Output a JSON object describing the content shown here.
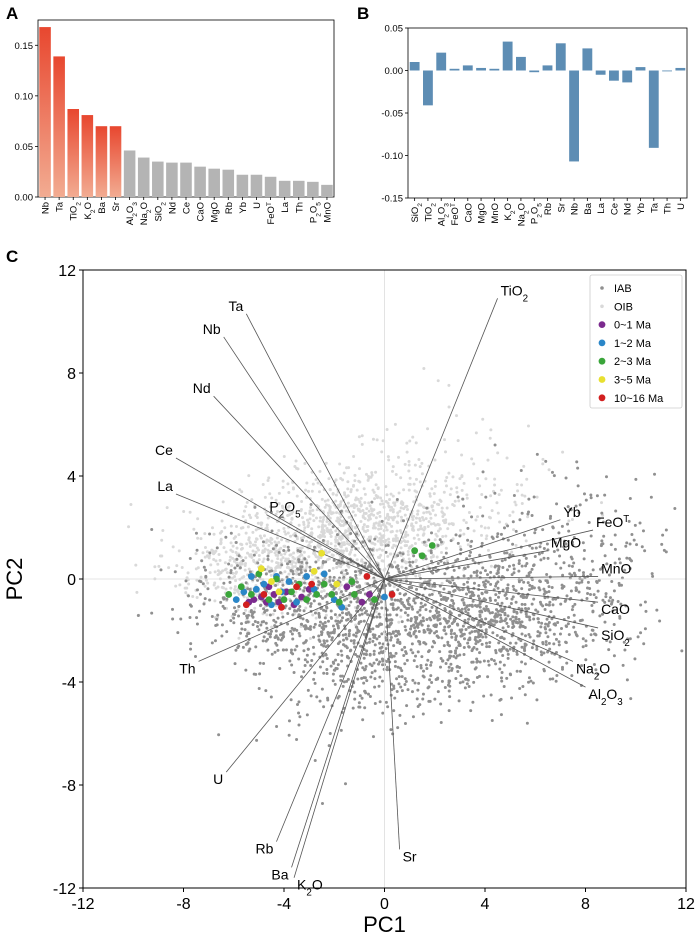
{
  "chart_data": [
    {
      "panel": "A",
      "type": "bar",
      "categories": [
        "Nb",
        "Ta",
        "TiO2",
        "K2O",
        "Ba",
        "Sr",
        "Al2O3",
        "Na2O",
        "SiO2",
        "Nd",
        "Ce",
        "CaO",
        "MgO",
        "Rb",
        "Yb",
        "U",
        "FeOT",
        "La",
        "Th",
        "P2O5",
        "MnO"
      ],
      "tick_labels": [
        [
          "Nb"
        ],
        [
          "Ta"
        ],
        [
          "TiO",
          "2"
        ],
        [
          "K",
          "2",
          "O"
        ],
        [
          "Ba"
        ],
        [
          "Sr"
        ],
        [
          "Al",
          "2",
          "O",
          "3"
        ],
        [
          "Na",
          "2",
          "O"
        ],
        [
          "SiO",
          "2"
        ],
        [
          "Nd"
        ],
        [
          "Ce"
        ],
        [
          "CaO"
        ],
        [
          "MgO"
        ],
        [
          "Rb"
        ],
        [
          "Yb"
        ],
        [
          "U"
        ],
        [
          "FeO",
          "T"
        ],
        [
          "La"
        ],
        [
          "Th"
        ],
        [
          "P",
          "2",
          "O",
          "5"
        ],
        [
          "MnO"
        ]
      ],
      "values": [
        0.168,
        0.139,
        0.087,
        0.081,
        0.07,
        0.07,
        0.046,
        0.039,
        0.035,
        0.034,
        0.034,
        0.03,
        0.028,
        0.027,
        0.022,
        0.022,
        0.02,
        0.016,
        0.016,
        0.015,
        0.012
      ],
      "highlight_count": 6,
      "ylim": [
        0,
        0.175
      ],
      "yticks": [
        "0.00",
        "0.05",
        "0.10",
        "0.15"
      ],
      "ytick_values": [
        0,
        0.05,
        0.1,
        0.15
      ],
      "colors": {
        "highlight_top": "#e8472f",
        "highlight_bottom": "#f2ac92",
        "other": "#b4b4b4"
      }
    },
    {
      "panel": "B",
      "type": "bar",
      "categories": [
        "SiO2",
        "TiO2",
        "Al2O3",
        "FeOT",
        "CaO",
        "MgO",
        "MnO",
        "K2O",
        "Na2O",
        "P2O5",
        "Rb",
        "Sr",
        "Nb",
        "Ba",
        "La",
        "Ce",
        "Nd",
        "Yb",
        "Ta",
        "Th",
        "U"
      ],
      "tick_labels": [
        [
          "SiO",
          "2"
        ],
        [
          "TiO",
          "2"
        ],
        [
          "Al",
          "2",
          "O",
          "3"
        ],
        [
          "FeO",
          "T"
        ],
        [
          "CaO"
        ],
        [
          "MgO"
        ],
        [
          "MnO"
        ],
        [
          "K",
          "2",
          "O"
        ],
        [
          "Na",
          "2",
          "O"
        ],
        [
          "P",
          "2",
          "O",
          "5"
        ],
        [
          "Rb"
        ],
        [
          "Sr"
        ],
        [
          "Nb"
        ],
        [
          "Ba"
        ],
        [
          "La"
        ],
        [
          "Ce"
        ],
        [
          "Nd"
        ],
        [
          "Yb"
        ],
        [
          "Ta"
        ],
        [
          "Th"
        ],
        [
          "U"
        ]
      ],
      "values": [
        0.01,
        -0.041,
        0.021,
        0.002,
        0.006,
        0.003,
        0.002,
        0.034,
        0.016,
        -0.002,
        0.006,
        0.032,
        -0.107,
        0.026,
        -0.005,
        -0.012,
        -0.014,
        0.004,
        -0.091,
        -0.001,
        0.003
      ],
      "ylim": [
        -0.15,
        0.05
      ],
      "yticks": [
        "-0.15",
        "-0.10",
        "-0.05",
        "0.00",
        "0.05"
      ],
      "ytick_values": [
        -0.15,
        -0.1,
        -0.05,
        0.0,
        0.05
      ],
      "colors": {
        "bar": "#5d8db4"
      }
    },
    {
      "panel": "C",
      "type": "scatter",
      "xlabel": "PC1",
      "ylabel": "PC2",
      "xlim": [
        -12,
        12
      ],
      "ylim": [
        -12,
        12
      ],
      "xticks": [
        "-12",
        "-8",
        "-4",
        "0",
        "4",
        "8",
        "12"
      ],
      "yticks": [
        "-12",
        "-8",
        "-4",
        "0",
        "4",
        "8",
        "12"
      ],
      "tick_values": [
        -12,
        -8,
        -4,
        0,
        4,
        8,
        12
      ],
      "legend": {
        "position": "top-right",
        "entries": [
          "IAB",
          "OIB",
          "0~1 Ma",
          "1~2 Ma",
          "2~3 Ma",
          "3~5 Ma",
          "10~16 Ma"
        ]
      },
      "colors": {
        "IAB": "#909090",
        "OIB": "#d9d9d9",
        "0~1 Ma": "#7b2a8e",
        "1~2 Ma": "#2a86c8",
        "2~3 Ma": "#3aa53a",
        "3~5 Ma": "#e8e030",
        "10~16 Ma": "#d21f1f"
      },
      "cloud_shapes": {
        "IAB": [
          {
            "cx": 4,
            "cy": -1.5,
            "sx": 2.6,
            "sy": 1.3,
            "n": 1000
          },
          {
            "cx": -1,
            "cy": -2,
            "sx": 2.0,
            "sy": 1.8,
            "n": 650
          },
          {
            "cx": -4,
            "cy": -1.0,
            "sx": 2.2,
            "sy": 1.3,
            "n": 380
          },
          {
            "cx": 7,
            "cy": 1.0,
            "sx": 2.2,
            "sy": 1.6,
            "n": 220
          }
        ],
        "OIB": [
          {
            "cx": -1,
            "cy": 2.0,
            "sx": 2.2,
            "sy": 1.1,
            "n": 820
          },
          {
            "cx": -4.5,
            "cy": 0.6,
            "sx": 2.0,
            "sy": 1.0,
            "n": 520
          },
          {
            "cx": 2,
            "cy": 3.5,
            "sx": 2.5,
            "sy": 1.4,
            "n": 160
          }
        ]
      },
      "series": [
        {
          "name": "0~1 Ma",
          "points": [
            [
              -5.4,
              -0.9
            ],
            [
              -5.2,
              -0.8
            ],
            [
              -4.9,
              -0.7
            ],
            [
              -4.7,
              -0.9
            ],
            [
              -4.4,
              -0.6
            ],
            [
              -4.2,
              -0.9
            ],
            [
              -3.9,
              -0.5
            ],
            [
              -3.6,
              -1.0
            ],
            [
              -3.3,
              -0.7
            ],
            [
              -0.9,
              -0.9
            ],
            [
              -0.6,
              -0.6
            ],
            [
              -1.5,
              -0.3
            ],
            [
              -4.6,
              -0.3
            ],
            [
              -3.0,
              -0.4
            ]
          ]
        },
        {
          "name": "1~2 Ma",
          "points": [
            [
              -5.9,
              -0.8
            ],
            [
              -5.6,
              -0.5
            ],
            [
              -5.1,
              -0.4
            ],
            [
              -4.8,
              -0.2
            ],
            [
              -4.5,
              -1.0
            ],
            [
              -4.1,
              -0.5
            ],
            [
              -3.8,
              -0.1
            ],
            [
              -3.5,
              -0.9
            ],
            [
              -3.1,
              0.1
            ],
            [
              -2.8,
              -0.4
            ],
            [
              -2.4,
              0.2
            ],
            [
              -2.0,
              -0.8
            ],
            [
              -1.7,
              -1.1
            ],
            [
              0.0,
              -0.7
            ],
            [
              -5.3,
              0.1
            ],
            [
              -4.3,
              0.1
            ]
          ]
        },
        {
          "name": "2~3 Ma",
          "points": [
            [
              -6.2,
              -0.6
            ],
            [
              -5.7,
              -0.3
            ],
            [
              -5.3,
              -0.6
            ],
            [
              -5.0,
              0.2
            ],
            [
              -4.6,
              -0.8
            ],
            [
              -4.3,
              0.0
            ],
            [
              -4.0,
              -0.8
            ],
            [
              -3.7,
              -0.5
            ],
            [
              -3.4,
              -0.2
            ],
            [
              -3.1,
              -0.8
            ],
            [
              -2.7,
              -0.6
            ],
            [
              -2.4,
              -0.2
            ],
            [
              -2.1,
              -0.6
            ],
            [
              -1.8,
              -0.9
            ],
            [
              -1.2,
              -0.6
            ],
            [
              -0.4,
              -0.8
            ],
            [
              1.2,
              1.1
            ],
            [
              1.5,
              0.9
            ],
            [
              1.9,
              1.3
            ],
            [
              -1.3,
              -0.1
            ]
          ]
        },
        {
          "name": "3~5 Ma",
          "points": [
            [
              -4.9,
              0.4
            ],
            [
              -4.5,
              -0.1
            ],
            [
              -4.2,
              -0.5
            ],
            [
              -2.5,
              1.0
            ],
            [
              -2.8,
              0.3
            ],
            [
              -1.9,
              -0.2
            ]
          ]
        },
        {
          "name": "10~16 Ma",
          "points": [
            [
              -5.5,
              -1.0
            ],
            [
              -4.8,
              -0.6
            ],
            [
              -4.1,
              -1.1
            ],
            [
              -3.5,
              -0.3
            ],
            [
              -0.7,
              0.1
            ],
            [
              0.3,
              -0.6
            ],
            [
              -2.9,
              -0.2
            ]
          ]
        }
      ],
      "loadings": [
        {
          "name": "TiO2",
          "label": [
            "TiO",
            "2"
          ],
          "x": 4.5,
          "y": 10.9,
          "anchor": "start"
        },
        {
          "name": "Ta",
          "label": [
            "Ta"
          ],
          "x": -5.5,
          "y": 10.3,
          "anchor": "end"
        },
        {
          "name": "Nb",
          "label": [
            "Nb"
          ],
          "x": -6.4,
          "y": 9.4,
          "anchor": "end"
        },
        {
          "name": "Nd",
          "label": [
            "Nd"
          ],
          "x": -6.8,
          "y": 7.1,
          "anchor": "end"
        },
        {
          "name": "Ce",
          "label": [
            "Ce"
          ],
          "x": -8.3,
          "y": 4.7,
          "anchor": "end"
        },
        {
          "name": "La",
          "label": [
            "La"
          ],
          "x": -8.3,
          "y": 3.3,
          "anchor": "end"
        },
        {
          "name": "P2O5",
          "label": [
            "P",
            "2",
            "O",
            "5"
          ],
          "x": -4.7,
          "y": 2.5,
          "anchor": "start"
        },
        {
          "name": "Yb",
          "label": [
            "Yb"
          ],
          "x": 7.0,
          "y": 2.3,
          "anchor": "start"
        },
        {
          "name": "FeOT",
          "label": [
            "FeO",
            "T"
          ],
          "x": 8.3,
          "y": 1.9,
          "anchor": "start"
        },
        {
          "name": "MgO",
          "label": [
            "MgO"
          ],
          "x": 6.5,
          "y": 1.1,
          "anchor": "start"
        },
        {
          "name": "MnO",
          "label": [
            "MnO"
          ],
          "x": 8.5,
          "y": 0.1,
          "anchor": "start"
        },
        {
          "name": "CaO",
          "label": [
            "CaO"
          ],
          "x": 8.5,
          "y": -0.9,
          "anchor": "start"
        },
        {
          "name": "SiO2",
          "label": [
            "SiO",
            "2"
          ],
          "x": 8.5,
          "y": -1.9,
          "anchor": "start"
        },
        {
          "name": "Na2O",
          "label": [
            "Na",
            "2",
            "O"
          ],
          "x": 7.5,
          "y": -3.2,
          "anchor": "start"
        },
        {
          "name": "Al2O3",
          "label": [
            "Al",
            "2",
            "O",
            "3"
          ],
          "x": 8.0,
          "y": -4.2,
          "anchor": "start"
        },
        {
          "name": "Th",
          "label": [
            "Th"
          ],
          "x": -7.4,
          "y": -3.2,
          "anchor": "end"
        },
        {
          "name": "U",
          "label": [
            "U"
          ],
          "x": -6.3,
          "y": -7.5,
          "anchor": "end"
        },
        {
          "name": "Rb",
          "label": [
            "Rb"
          ],
          "x": -4.3,
          "y": -10.2,
          "anchor": "end"
        },
        {
          "name": "Ba",
          "label": [
            "Ba"
          ],
          "x": -3.7,
          "y": -11.2,
          "anchor": "end"
        },
        {
          "name": "K2O",
          "label": [
            "K",
            "2",
            "O"
          ],
          "x": -3.6,
          "y": -11.6,
          "anchor": "start"
        },
        {
          "name": "Sr",
          "label": [
            "Sr"
          ],
          "x": 0.6,
          "y": -10.5,
          "anchor": "start"
        }
      ]
    }
  ],
  "panel_labels": {
    "a": "A",
    "b": "B",
    "c": "C"
  }
}
